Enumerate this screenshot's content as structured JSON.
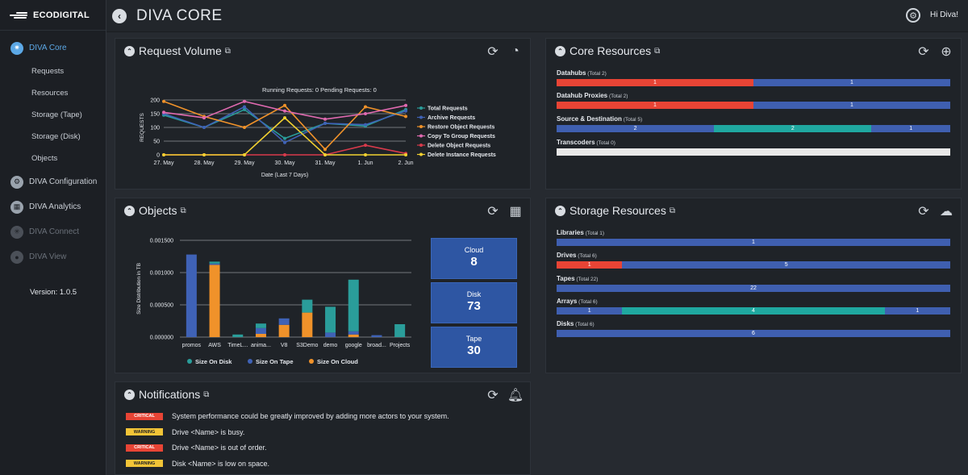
{
  "sidebar": {
    "logo": "ECODIGITAL",
    "items": [
      {
        "label": "DIVA Core",
        "icon": "core-icon",
        "state": "active"
      },
      {
        "label": "DIVA Configuration",
        "icon": "configuration-icon",
        "state": "normal"
      },
      {
        "label": "DIVA Analytics",
        "icon": "analytics-icon",
        "state": "normal"
      },
      {
        "label": "DIVA Connect",
        "icon": "connect-icon",
        "state": "disabled"
      },
      {
        "label": "DIVA View",
        "icon": "view-icon",
        "state": "disabled"
      }
    ],
    "subitems": [
      "Requests",
      "Resources",
      "Storage (Tape)",
      "Storage (Disk)",
      "Objects"
    ],
    "version": "Version: 1.0.5"
  },
  "topbar": {
    "title": "DIVA CORE",
    "greeting": "Hi Diva!"
  },
  "request_volume": {
    "title": "Request Volume",
    "status": "Running Requests: 0   Pending Requests: 0",
    "chart_data": {
      "type": "line",
      "xlabel": "Date (Last 7 Days)",
      "ylabel": "REQUESTS",
      "categories": [
        "27. May",
        "28. May",
        "29. May",
        "30. May",
        "31. May",
        "1. Jun",
        "2. Jun"
      ],
      "ylim": [
        0,
        200
      ],
      "yticks": [
        "200",
        "150",
        "100",
        "50",
        "0"
      ],
      "legend_position": "right",
      "series": [
        {
          "name": "Total Requests",
          "color": "#2a9d9a",
          "marker": "circle",
          "values": [
            145,
            100,
            165,
            60,
            115,
            105,
            165
          ]
        },
        {
          "name": "Archive Requests",
          "color": "#3f62b6",
          "marker": "diamond",
          "values": [
            150,
            100,
            175,
            45,
            115,
            110,
            160
          ]
        },
        {
          "name": "Restore Object Requests",
          "color": "#f0922a",
          "marker": "square",
          "values": [
            195,
            140,
            100,
            180,
            20,
            175,
            140
          ]
        },
        {
          "name": "Copy To Group Requests",
          "color": "#e06ab0",
          "marker": "triangle-down",
          "values": [
            155,
            135,
            195,
            160,
            130,
            150,
            180
          ]
        },
        {
          "name": "Delete Object Requests",
          "color": "#d83a4b",
          "marker": "triangle",
          "values": [
            0,
            0,
            0,
            0,
            0,
            35,
            5
          ]
        },
        {
          "name": "Delete Instance Requests",
          "color": "#f2d130",
          "marker": "circle",
          "values": [
            0,
            0,
            0,
            135,
            0,
            0,
            0
          ]
        }
      ]
    }
  },
  "objects": {
    "title": "Objects",
    "chart_data": {
      "type": "bar",
      "stacked": true,
      "ylabel": "Size Distribution in TB",
      "ylim": [
        0,
        0.0015
      ],
      "yticks": [
        "0.001500",
        "0.001000",
        "0.000500",
        "0.000000"
      ],
      "categories": [
        "promos",
        "AWS",
        "TimeL...",
        "anima...",
        "V8",
        "S3Demo",
        "demo",
        "google",
        "broad...",
        "Projects"
      ],
      "legend_position": "bottom",
      "series": [
        {
          "name": "Size On Disk",
          "color": "#2a9d9a",
          "values": [
            0,
            3e-05,
            4e-05,
            7e-05,
            0,
            0.0002,
            0.0004,
            0.0008,
            0,
            0.0002
          ]
        },
        {
          "name": "Size On Tape",
          "color": "#3f62b6",
          "values": [
            0.00128,
            2e-05,
            0,
            9e-05,
            0.0001,
            0,
            7e-05,
            5e-05,
            3e-05,
            0
          ]
        },
        {
          "name": "Size On Cloud",
          "color": "#f0922a",
          "values": [
            0,
            0.00112,
            0,
            5e-05,
            0.00019,
            0.00038,
            0,
            4e-05,
            0,
            0
          ]
        }
      ]
    },
    "stats": [
      {
        "label": "Cloud",
        "value": "8"
      },
      {
        "label": "Disk",
        "value": "73"
      },
      {
        "label": "Tape",
        "value": "30"
      }
    ]
  },
  "core_resources": {
    "title": "Core Resources",
    "rows": [
      {
        "name": "Datahubs",
        "total": "(Total 2)",
        "segments": [
          {
            "value": "1",
            "fraction": 0.5,
            "color": "#e84435"
          },
          {
            "value": "1",
            "fraction": 0.5,
            "color": "#3f5fb0"
          }
        ]
      },
      {
        "name": "Datahub Proxies",
        "total": "(Total 2)",
        "segments": [
          {
            "value": "1",
            "fraction": 0.5,
            "color": "#e84435"
          },
          {
            "value": "1",
            "fraction": 0.5,
            "color": "#3f5fb0"
          }
        ]
      },
      {
        "name": "Source & Destination",
        "total": "(Total 5)",
        "segments": [
          {
            "value": "2",
            "fraction": 0.4,
            "color": "#3f5fb0"
          },
          {
            "value": "2",
            "fraction": 0.4,
            "color": "#1fa8a0"
          },
          {
            "value": "1",
            "fraction": 0.2,
            "color": "#3f5fb0"
          }
        ]
      },
      {
        "name": "Transcoders",
        "total": "(Total 0)",
        "segments": []
      }
    ]
  },
  "storage_resources": {
    "title": "Storage Resources",
    "rows": [
      {
        "name": "Libraries",
        "total": "(Total 1)",
        "segments": [
          {
            "value": "1",
            "fraction": 1,
            "color": "#3f5fb0"
          }
        ]
      },
      {
        "name": "Drives",
        "total": "(Total 6)",
        "segments": [
          {
            "value": "1",
            "fraction": 0.1667,
            "color": "#e84435"
          },
          {
            "value": "5",
            "fraction": 0.8333,
            "color": "#3f5fb0"
          }
        ]
      },
      {
        "name": "Tapes",
        "total": "(Total 22)",
        "segments": [
          {
            "value": "22",
            "fraction": 1,
            "color": "#3f5fb0"
          }
        ]
      },
      {
        "name": "Arrays",
        "total": "(Total 6)",
        "segments": [
          {
            "value": "1",
            "fraction": 0.1667,
            "color": "#3f5fb0"
          },
          {
            "value": "4",
            "fraction": 0.6667,
            "color": "#1fa8a0"
          },
          {
            "value": "1",
            "fraction": 0.1667,
            "color": "#3f5fb0"
          }
        ]
      },
      {
        "name": "Disks",
        "total": "(Total 6)",
        "segments": [
          {
            "value": "6",
            "fraction": 1,
            "color": "#3f5fb0"
          }
        ]
      }
    ]
  },
  "notifications": {
    "title": "Notifications",
    "items": [
      {
        "level": "CRITICAL",
        "text": "System performance could be greatly improved by adding more actors to your system."
      },
      {
        "level": "WARNING",
        "text": "Drive <Name> is busy."
      },
      {
        "level": "CRITICAL",
        "text": "Drive <Name> is out of order."
      },
      {
        "level": "WARNING",
        "text": "Disk <Name> is low on space."
      }
    ]
  }
}
